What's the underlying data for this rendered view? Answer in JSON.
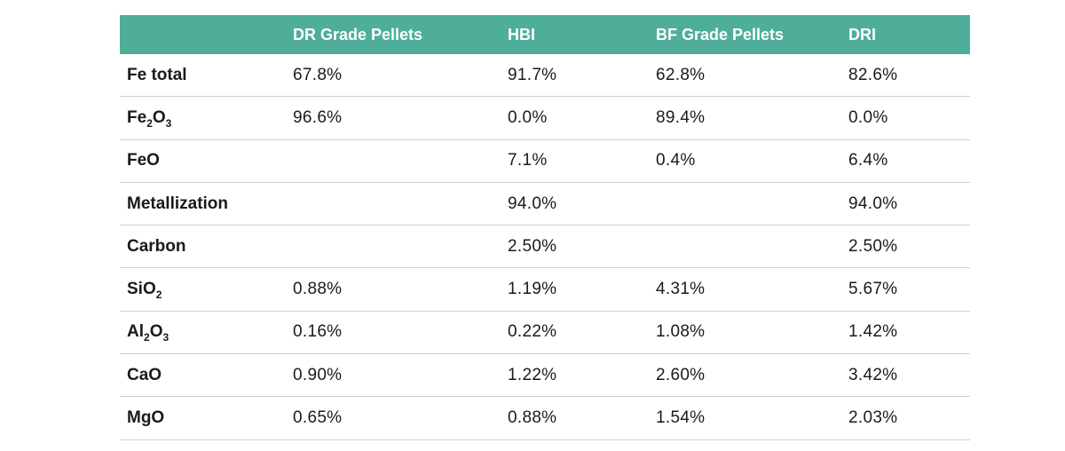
{
  "columns": [
    "",
    "DR Grade Pellets",
    "HBI",
    "BF Grade Pellets",
    "DRI"
  ],
  "rows": [
    {
      "label": {
        "base": "Fe total"
      },
      "values": [
        "67.8%",
        "91.7%",
        "62.8%",
        "82.6%"
      ]
    },
    {
      "label": {
        "parts": [
          [
            "Fe",
            "2"
          ],
          [
            "O",
            "3"
          ]
        ]
      },
      "values": [
        "96.6%",
        "0.0%",
        "89.4%",
        "0.0%"
      ]
    },
    {
      "label": {
        "base": "FeO"
      },
      "values": [
        "",
        "7.1%",
        "0.4%",
        "6.4%"
      ]
    },
    {
      "label": {
        "base": "Metallization"
      },
      "values": [
        "",
        "94.0%",
        "",
        "94.0%"
      ]
    },
    {
      "label": {
        "base": "Carbon"
      },
      "values": [
        "",
        "2.50%",
        "",
        "2.50%"
      ]
    },
    {
      "label": {
        "parts": [
          [
            "SiO",
            "2"
          ]
        ]
      },
      "values": [
        "0.88%",
        "1.19%",
        "4.31%",
        "5.67%"
      ]
    },
    {
      "label": {
        "parts": [
          [
            "Al",
            "2"
          ],
          [
            "O",
            "3"
          ]
        ]
      },
      "values": [
        "0.16%",
        "0.22%",
        "1.08%",
        "1.42%"
      ]
    },
    {
      "label": {
        "base": "CaO"
      },
      "values": [
        "0.90%",
        "1.22%",
        "2.60%",
        "3.42%"
      ]
    },
    {
      "label": {
        "base": "MgO"
      },
      "values": [
        "0.65%",
        "0.88%",
        "1.54%",
        "2.03%"
      ]
    }
  ],
  "colors": {
    "header_bg": "#4fae99",
    "header_text": "#ffffff",
    "row_border": "#cfcfcf"
  }
}
